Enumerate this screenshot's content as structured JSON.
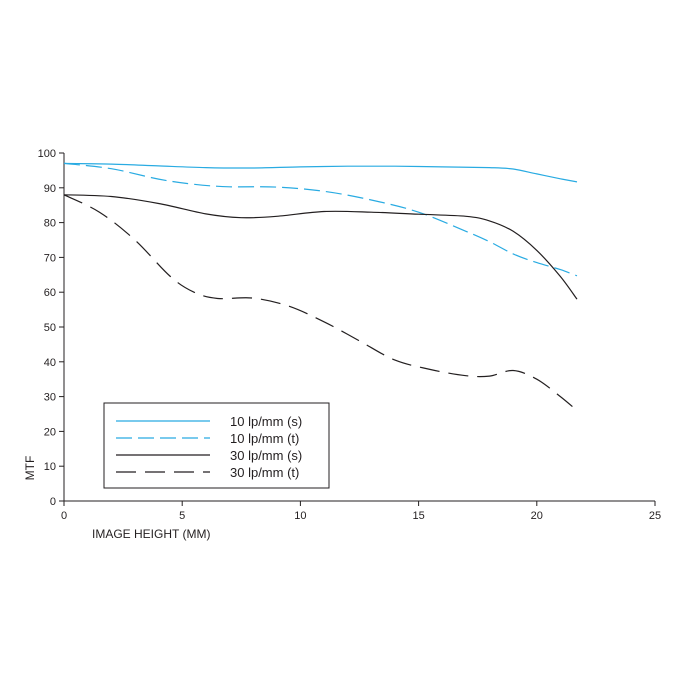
{
  "chart_data": {
    "type": "line",
    "xlabel": "IMAGE HEIGHT (MM)",
    "ylabel": "MTF",
    "xlim": [
      0,
      25
    ],
    "ylim": [
      0,
      100
    ],
    "xticks": [
      "0",
      "5",
      "10",
      "15",
      "20",
      "25"
    ],
    "yticks": [
      "0",
      "10",
      "20",
      "30",
      "40",
      "50",
      "60",
      "70",
      "80",
      "90",
      "100"
    ],
    "grid": false,
    "legend_position": "bottom-left",
    "series": [
      {
        "name": "10 lp/mm (s)",
        "color": "#29abe2",
        "style": "solid",
        "points": [
          [
            0,
            97
          ],
          [
            2,
            96.8
          ],
          [
            4,
            96.3
          ],
          [
            6,
            95.8
          ],
          [
            8,
            95.7
          ],
          [
            10,
            96
          ],
          [
            12,
            96.2
          ],
          [
            14,
            96.2
          ],
          [
            16,
            96
          ],
          [
            18,
            95.8
          ],
          [
            19,
            95.4
          ],
          [
            20,
            94
          ],
          [
            21,
            92.6
          ],
          [
            21.7,
            91.7
          ]
        ]
      },
      {
        "name": "10 lp/mm (t)",
        "color": "#29abe2",
        "style": "dashed",
        "points": [
          [
            0,
            97
          ],
          [
            2,
            95.5
          ],
          [
            4,
            92.5
          ],
          [
            5.5,
            91
          ],
          [
            7,
            90.3
          ],
          [
            9,
            90.2
          ],
          [
            11,
            89
          ],
          [
            13,
            86.5
          ],
          [
            15,
            83
          ],
          [
            17,
            77.5
          ],
          [
            18,
            74.5
          ],
          [
            19,
            71
          ],
          [
            20,
            68.5
          ],
          [
            21,
            66.5
          ],
          [
            21.7,
            64.7
          ]
        ]
      },
      {
        "name": "30 lp/mm (s)",
        "color": "#231f20",
        "style": "solid",
        "points": [
          [
            0,
            88
          ],
          [
            2,
            87.5
          ],
          [
            4,
            85.5
          ],
          [
            6,
            82.5
          ],
          [
            7.5,
            81.4
          ],
          [
            9,
            81.8
          ],
          [
            11,
            83.2
          ],
          [
            13,
            83
          ],
          [
            15,
            82.4
          ],
          [
            17,
            81.8
          ],
          [
            18,
            80.5
          ],
          [
            19,
            77.5
          ],
          [
            20,
            72
          ],
          [
            21,
            64.5
          ],
          [
            21.7,
            58
          ]
        ]
      },
      {
        "name": "30 lp/mm (t)",
        "color": "#231f20",
        "style": "longdash",
        "points": [
          [
            0,
            88
          ],
          [
            1.5,
            83
          ],
          [
            3,
            75
          ],
          [
            4.5,
            64.5
          ],
          [
            5.5,
            60
          ],
          [
            6.5,
            58.2
          ],
          [
            8,
            58.3
          ],
          [
            9.5,
            56
          ],
          [
            11,
            51.5
          ],
          [
            12.5,
            46
          ],
          [
            14,
            40.5
          ],
          [
            15.5,
            37.8
          ],
          [
            17,
            36
          ],
          [
            18,
            35.9
          ],
          [
            19,
            37.5
          ],
          [
            20,
            35
          ],
          [
            21,
            30
          ],
          [
            21.7,
            26
          ]
        ]
      }
    ]
  }
}
